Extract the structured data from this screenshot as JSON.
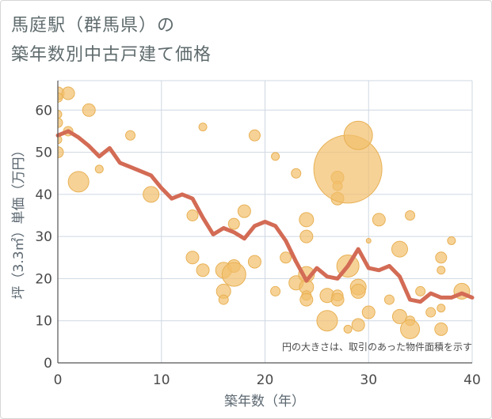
{
  "chart_data": {
    "type": "scatter",
    "title_lines": [
      "馬庭駅（群馬県）の",
      "築年数別中古戸建て価格"
    ],
    "xlabel": "築年数（年）",
    "ylabel": "坪（3.3㎡）単価（万円）",
    "xlim": [
      0,
      40
    ],
    "ylim": [
      0,
      67
    ],
    "xticks": [
      0,
      10,
      20,
      30,
      40
    ],
    "yticks": [
      0,
      10,
      20,
      30,
      40,
      50,
      60
    ],
    "grid": true,
    "note": "円の大きさは、取引のあった物件面積を示す",
    "colors": {
      "bubble": "#f2bf6b",
      "bubble_edge": "#e8b155",
      "line": "#d36b55",
      "grid": "#cfd8e3",
      "axis": "#555555"
    },
    "series": [
      {
        "kind": "bubbles",
        "points": [
          {
            "x": 0,
            "y": 64,
            "r": 8
          },
          {
            "x": 0,
            "y": 63,
            "r": 6
          },
          {
            "x": 0,
            "y": 59,
            "r": 5
          },
          {
            "x": 0,
            "y": 57,
            "r": 6
          },
          {
            "x": 0,
            "y": 53,
            "r": 5
          },
          {
            "x": 0,
            "y": 50,
            "r": 7
          },
          {
            "x": 1,
            "y": 64,
            "r": 8
          },
          {
            "x": 1,
            "y": 55,
            "r": 6
          },
          {
            "x": 2,
            "y": 43,
            "r": 13
          },
          {
            "x": 3,
            "y": 60,
            "r": 8
          },
          {
            "x": 4,
            "y": 46,
            "r": 5
          },
          {
            "x": 7,
            "y": 54,
            "r": 6
          },
          {
            "x": 9,
            "y": 40,
            "r": 10
          },
          {
            "x": 14,
            "y": 56,
            "r": 5
          },
          {
            "x": 13,
            "y": 35,
            "r": 7
          },
          {
            "x": 13,
            "y": 25,
            "r": 8
          },
          {
            "x": 14,
            "y": 22,
            "r": 8
          },
          {
            "x": 16,
            "y": 22,
            "r": 10
          },
          {
            "x": 16,
            "y": 17,
            "r": 9
          },
          {
            "x": 16,
            "y": 15,
            "r": 6
          },
          {
            "x": 17,
            "y": 33,
            "r": 7
          },
          {
            "x": 17,
            "y": 23,
            "r": 8
          },
          {
            "x": 17,
            "y": 21,
            "r": 15
          },
          {
            "x": 18,
            "y": 36,
            "r": 8
          },
          {
            "x": 19,
            "y": 54,
            "r": 7
          },
          {
            "x": 19,
            "y": 24,
            "r": 8
          },
          {
            "x": 21,
            "y": 49,
            "r": 5
          },
          {
            "x": 21,
            "y": 17,
            "r": 6
          },
          {
            "x": 22,
            "y": 25,
            "r": 7
          },
          {
            "x": 23,
            "y": 45,
            "r": 6
          },
          {
            "x": 23,
            "y": 19,
            "r": 9
          },
          {
            "x": 24,
            "y": 34,
            "r": 9
          },
          {
            "x": 24,
            "y": 30,
            "r": 8
          },
          {
            "x": 24,
            "y": 21,
            "r": 10
          },
          {
            "x": 24,
            "y": 18,
            "r": 9
          },
          {
            "x": 24,
            "y": 16,
            "r": 6
          },
          {
            "x": 24,
            "y": 15,
            "r": 8
          },
          {
            "x": 26,
            "y": 16,
            "r": 9
          },
          {
            "x": 26,
            "y": 10,
            "r": 13
          },
          {
            "x": 27,
            "y": 44,
            "r": 8
          },
          {
            "x": 27,
            "y": 42,
            "r": 6
          },
          {
            "x": 27,
            "y": 39,
            "r": 8
          },
          {
            "x": 27,
            "y": 16,
            "r": 7
          },
          {
            "x": 27,
            "y": 15,
            "r": 8
          },
          {
            "x": 28,
            "y": 46,
            "r": 43
          },
          {
            "x": 28,
            "y": 23,
            "r": 14
          },
          {
            "x": 28,
            "y": 8,
            "r": 5
          },
          {
            "x": 29,
            "y": 54,
            "r": 18
          },
          {
            "x": 29,
            "y": 18,
            "r": 10
          },
          {
            "x": 29,
            "y": 17,
            "r": 9
          },
          {
            "x": 29,
            "y": 9,
            "r": 8
          },
          {
            "x": 30,
            "y": 29,
            "r": 3
          },
          {
            "x": 30,
            "y": 12,
            "r": 8
          },
          {
            "x": 31,
            "y": 34,
            "r": 8
          },
          {
            "x": 32,
            "y": 15,
            "r": 6
          },
          {
            "x": 33,
            "y": 27,
            "r": 10
          },
          {
            "x": 33,
            "y": 11,
            "r": 9
          },
          {
            "x": 34,
            "y": 35,
            "r": 6
          },
          {
            "x": 34,
            "y": 10,
            "r": 6
          },
          {
            "x": 34,
            "y": 8,
            "r": 12
          },
          {
            "x": 35,
            "y": 17,
            "r": 6
          },
          {
            "x": 36,
            "y": 12,
            "r": 6
          },
          {
            "x": 37,
            "y": 25,
            "r": 7
          },
          {
            "x": 37,
            "y": 22,
            "r": 5
          },
          {
            "x": 37,
            "y": 13,
            "r": 5
          },
          {
            "x": 37,
            "y": 8,
            "r": 8
          },
          {
            "x": 38,
            "y": 29,
            "r": 5
          },
          {
            "x": 39,
            "y": 17,
            "r": 10
          }
        ]
      },
      {
        "kind": "line",
        "points": [
          [
            0,
            54
          ],
          [
            1,
            55
          ],
          [
            2,
            53.5
          ],
          [
            3,
            51.5
          ],
          [
            4,
            49
          ],
          [
            5,
            51
          ],
          [
            6,
            47.5
          ],
          [
            7,
            46.5
          ],
          [
            8,
            45.5
          ],
          [
            9,
            44.5
          ],
          [
            10,
            41.5
          ],
          [
            11,
            39
          ],
          [
            12,
            40
          ],
          [
            13,
            39
          ],
          [
            14,
            34.5
          ],
          [
            15,
            30.5
          ],
          [
            16,
            32
          ],
          [
            17,
            31
          ],
          [
            18,
            29.5
          ],
          [
            19,
            32.5
          ],
          [
            20,
            33.5
          ],
          [
            21,
            32.5
          ],
          [
            22,
            29
          ],
          [
            23,
            24
          ],
          [
            24,
            19.5
          ],
          [
            25,
            22.5
          ],
          [
            26,
            20.5
          ],
          [
            27,
            20
          ],
          [
            28,
            23
          ],
          [
            29,
            27
          ],
          [
            30,
            22.5
          ],
          [
            31,
            22
          ],
          [
            32,
            23
          ],
          [
            33,
            20.5
          ],
          [
            34,
            15
          ],
          [
            35,
            14.5
          ],
          [
            36,
            16.5
          ],
          [
            37,
            15.5
          ],
          [
            38,
            15.5
          ],
          [
            39,
            16.5
          ],
          [
            40,
            15.5
          ]
        ]
      }
    ]
  }
}
